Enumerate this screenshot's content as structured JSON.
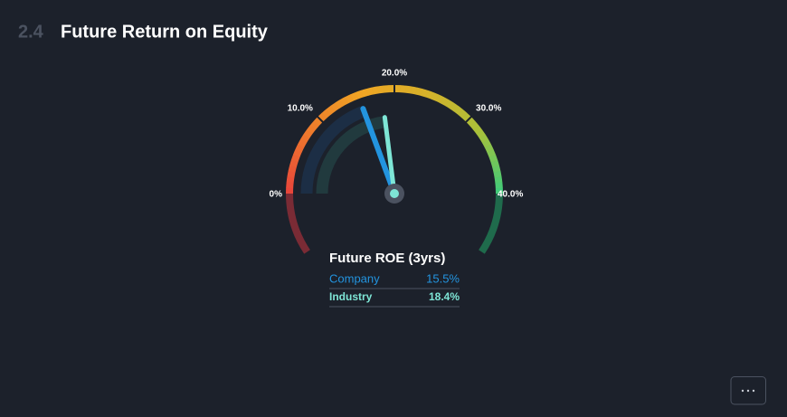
{
  "section_number": "2.4",
  "chart_data": {
    "type": "gauge",
    "title": "Future Return on Equity",
    "legend_title": "Future ROE (3yrs)",
    "gaugelim": [
      -7.5,
      47.5
    ],
    "ticks": [
      {
        "value": 0,
        "label": "0%"
      },
      {
        "value": 10,
        "label": "10.0%"
      },
      {
        "value": 20,
        "label": "20.0%"
      },
      {
        "value": 30,
        "label": "30.0%"
      },
      {
        "value": 40,
        "label": "40.0%"
      }
    ],
    "arc_colors": [
      "#e8443b",
      "#ee7a2c",
      "#f0a524",
      "#d6b22a",
      "#a9c13a",
      "#3dcb7b"
    ],
    "below_colors": [
      "#7a2b35",
      "#1f6b4c"
    ],
    "series": [
      {
        "name": "Company",
        "color": "#2394df",
        "band_color": "#1c2e45",
        "values": [
          15.5
        ],
        "value_labels": [
          "15.5%"
        ]
      },
      {
        "name": "Industry",
        "color": "#7ee6d6",
        "band_color": "#213a3e",
        "values": [
          18.4
        ],
        "value_labels": [
          "18.4%"
        ]
      }
    ]
  }
}
